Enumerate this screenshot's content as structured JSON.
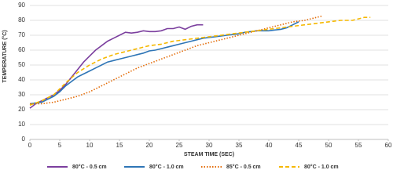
{
  "chart_data": {
    "type": "line",
    "xlabel": "STEAM TIME (SEC)",
    "ylabel": "TEMPERATURE (°C)",
    "xlim": [
      0,
      60
    ],
    "xticks": [
      0,
      5,
      10,
      15,
      20,
      25,
      30,
      35,
      40,
      45,
      50,
      55,
      60
    ],
    "ylim": [
      0,
      90
    ],
    "yticks": [
      0,
      10,
      20,
      30,
      40,
      50,
      60,
      70,
      80,
      90
    ],
    "grid": true,
    "legend": "bottom",
    "series": [
      {
        "name": "80°C - 0.5 cm",
        "color": "#7b3f9e",
        "style": "solid",
        "x": [
          0,
          1,
          2,
          3,
          4,
          5,
          6,
          7,
          8,
          9,
          10,
          11,
          12,
          13,
          14,
          15,
          16,
          17,
          18,
          19,
          20,
          21,
          22,
          23,
          24,
          25,
          26,
          27,
          28,
          29
        ],
        "values": [
          21,
          24,
          26,
          28,
          30,
          33,
          37,
          42,
          47,
          52,
          56,
          60,
          63,
          66,
          68,
          70,
          72,
          71.5,
          72,
          73,
          72.5,
          72.5,
          73,
          74.5,
          74.5,
          75.5,
          74,
          76,
          77,
          77
        ]
      },
      {
        "name": "80°C - 1.0 cm",
        "color": "#2e75b6",
        "style": "solid",
        "x": [
          0,
          1,
          2,
          3,
          4,
          5,
          6,
          7,
          8,
          9,
          10,
          11,
          12,
          13,
          14,
          15,
          16,
          17,
          18,
          19,
          20,
          21,
          22,
          23,
          24,
          25,
          26,
          27,
          28,
          29,
          30,
          31,
          32,
          33,
          34,
          35,
          36,
          37,
          38,
          39,
          40,
          41,
          42,
          43,
          44,
          45
        ],
        "values": [
          24,
          24.5,
          25,
          27,
          29,
          32,
          36,
          39,
          42,
          44,
          46,
          48,
          50,
          52,
          53,
          54,
          55,
          56,
          57,
          58,
          59.5,
          60,
          61,
          62,
          63,
          64,
          65,
          66,
          67,
          68,
          68.5,
          69,
          69.5,
          70,
          70.5,
          71,
          72,
          72.5,
          73,
          73,
          73,
          73.5,
          74,
          75,
          77,
          79
        ]
      },
      {
        "name": "85°C - 0.5 cm",
        "color": "#e36c09",
        "style": "dotted",
        "x": [
          0,
          2,
          4,
          6,
          8,
          10,
          12,
          14,
          16,
          18,
          20,
          22,
          24,
          26,
          28,
          30,
          32,
          34,
          36,
          38,
          40,
          42,
          44,
          46,
          48,
          49
        ],
        "values": [
          24,
          24,
          25,
          27,
          29,
          32,
          36,
          40,
          44,
          48,
          51,
          54,
          57,
          60,
          63,
          65,
          67,
          69,
          71,
          73,
          75,
          77,
          79,
          80,
          82,
          83
        ]
      },
      {
        "name": "80°C - 1.0 cm",
        "color": "#f5b800",
        "style": "dashed",
        "x": [
          0,
          2,
          4,
          6,
          8,
          10,
          12,
          14,
          16,
          18,
          20,
          22,
          24,
          26,
          28,
          30,
          32,
          34,
          36,
          38,
          40,
          42,
          44,
          46,
          48,
          50,
          52,
          54,
          56,
          57
        ],
        "values": [
          23,
          26,
          30,
          38,
          45,
          50,
          54,
          57,
          59,
          61,
          63,
          64,
          66,
          67,
          68,
          69,
          70,
          71,
          72,
          73,
          74,
          75,
          76,
          77,
          78,
          79,
          80,
          80,
          82,
          82
        ]
      }
    ]
  }
}
